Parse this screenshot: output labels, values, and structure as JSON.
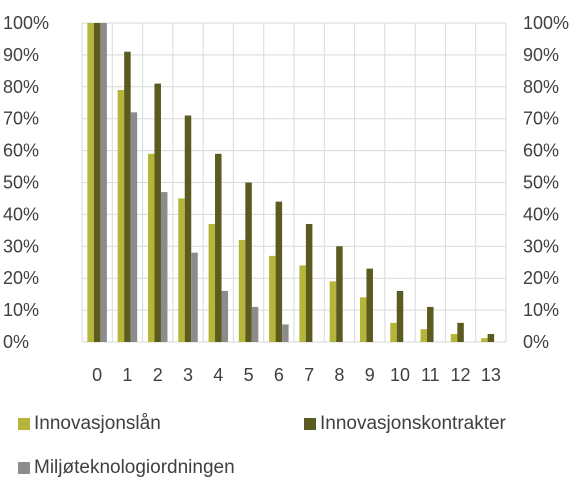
{
  "chart_data": {
    "type": "bar",
    "categories": [
      "0",
      "1",
      "2",
      "3",
      "4",
      "5",
      "6",
      "7",
      "8",
      "9",
      "10",
      "11",
      "12",
      "13"
    ],
    "series": [
      {
        "name": "Innovasjonslån",
        "color": "#b5b53a",
        "values": [
          100,
          79,
          59,
          45,
          37,
          32,
          27,
          24,
          19,
          14,
          6,
          4,
          2.5,
          1.2
        ]
      },
      {
        "name": "Innovasjonskontrakter",
        "color": "#5b5b1f",
        "values": [
          100,
          91,
          81,
          71,
          59,
          50,
          44,
          37,
          30,
          23,
          16,
          11,
          6,
          2.5
        ]
      },
      {
        "name": "Miljøteknologiordningen",
        "color": "#8c8c8c",
        "values": [
          100,
          72,
          47,
          28,
          16,
          11,
          5.5,
          0,
          0,
          0,
          0,
          0,
          0,
          0
        ]
      }
    ],
    "ylim": [
      0,
      100
    ],
    "y_ticks": [
      "0%",
      "10%",
      "20%",
      "30%",
      "40%",
      "50%",
      "60%",
      "70%",
      "80%",
      "90%",
      "100%"
    ],
    "y_tick_values": [
      0,
      10,
      20,
      30,
      40,
      50,
      60,
      70,
      80,
      90,
      100
    ],
    "grid": true,
    "legend_position": "bottom",
    "xlabel": "",
    "ylabel": "",
    "title": ""
  }
}
